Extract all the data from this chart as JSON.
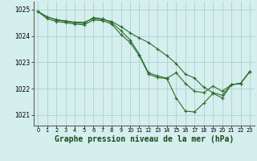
{
  "background_color": "#d5eeee",
  "grid_color": "#b0d0d0",
  "line_color": "#2d6e2d",
  "marker_color": "#2d6e2d",
  "xlabel": "Graphe pression niveau de la mer (hPa)",
  "xlabel_fontsize": 7.0,
  "ylim": [
    1020.6,
    1025.3
  ],
  "xlim": [
    -0.5,
    23.5
  ],
  "yticks": [
    1021,
    1022,
    1023,
    1024,
    1025
  ],
  "xticks": [
    0,
    1,
    2,
    3,
    4,
    5,
    6,
    7,
    8,
    9,
    10,
    11,
    12,
    13,
    14,
    15,
    16,
    17,
    18,
    19,
    20,
    21,
    22,
    23
  ],
  "series": [
    [
      1024.92,
      1024.72,
      1024.62,
      1024.57,
      1024.52,
      1024.52,
      1024.65,
      1024.62,
      1024.55,
      1024.35,
      1024.12,
      1023.92,
      1023.75,
      1023.5,
      1023.25,
      1022.95,
      1022.55,
      1022.4,
      1022.05,
      1021.85,
      1021.75,
      1022.15,
      1022.2,
      1022.65
    ],
    [
      1024.92,
      1024.72,
      1024.6,
      1024.55,
      1024.5,
      1024.47,
      1024.7,
      1024.65,
      1024.5,
      1024.2,
      1023.85,
      1023.3,
      1022.6,
      1022.48,
      1022.4,
      1022.6,
      1022.2,
      1021.9,
      1021.85,
      1022.1,
      1021.9,
      1022.15,
      1022.2,
      1022.65
    ],
    [
      1024.92,
      1024.65,
      1024.55,
      1024.5,
      1024.45,
      1024.42,
      1024.6,
      1024.58,
      1024.45,
      1024.05,
      1023.75,
      1023.25,
      1022.55,
      1022.42,
      1022.38,
      1021.65,
      1021.15,
      1021.12,
      1021.45,
      1021.82,
      1021.65,
      1022.15,
      1022.2,
      1022.65
    ]
  ]
}
